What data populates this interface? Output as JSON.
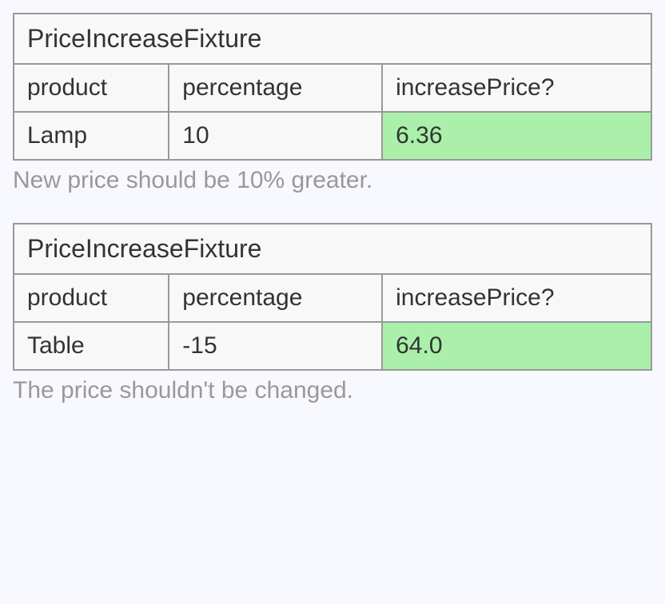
{
  "tables": [
    {
      "title": "PriceIncreaseFixture",
      "columns": [
        "product",
        "percentage",
        "increasePrice?"
      ],
      "row": {
        "product": "Lamp",
        "percentage": "10",
        "increasePrice": "6.36",
        "result_status": "pass",
        "result_bg": "#aaf0aa"
      },
      "caption": "New price should be 10% greater."
    },
    {
      "title": "PriceIncreaseFixture",
      "columns": [
        "product",
        "percentage",
        "increasePrice?"
      ],
      "row": {
        "product": "Table",
        "percentage": "-15",
        "increasePrice": "64.0",
        "result_status": "pass",
        "result_bg": "#aaf0aa"
      },
      "caption": "The price shouldn't be changed."
    }
  ],
  "style": {
    "background_color": "#f8f8ff",
    "table_bg": "#f8f8f8",
    "border_color": "#999999",
    "caption_color": "#999999",
    "text_color": "#333333",
    "pass_color": "#aaf0aa",
    "font_size_main": 30,
    "font_size_title": 32
  }
}
